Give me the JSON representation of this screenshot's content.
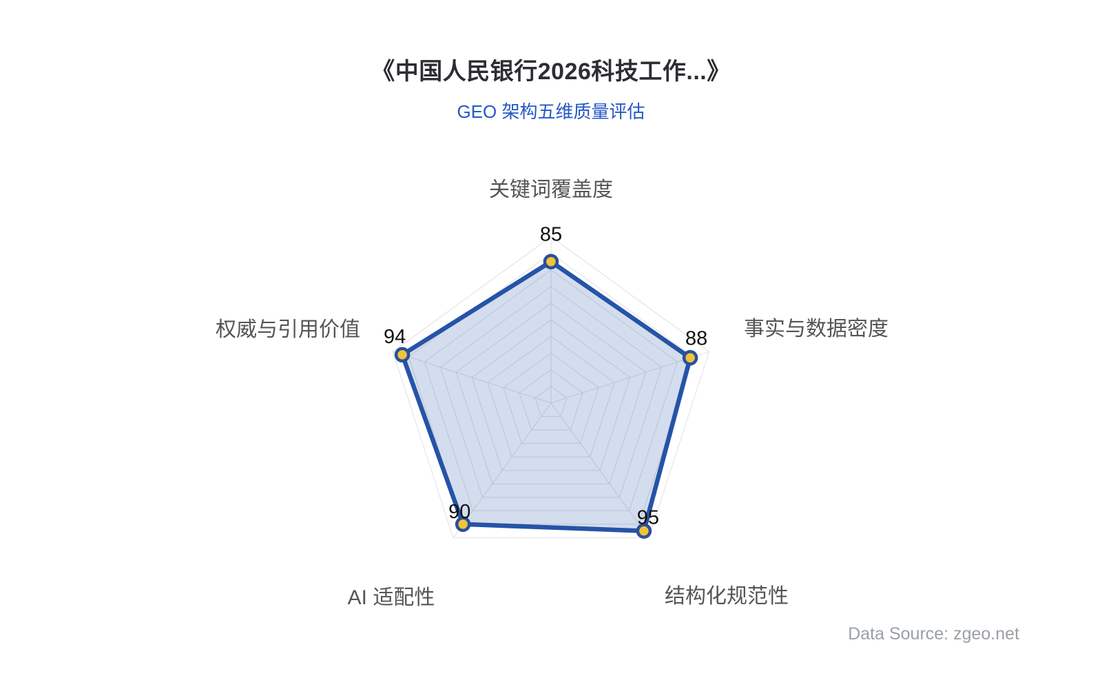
{
  "header": {
    "title": "《中国人民银行2026科技工作...》",
    "subtitle": "GEO 架构五维质量评估"
  },
  "chart_data": {
    "type": "radar",
    "title": "《中国人民银行2026科技工作...》",
    "subtitle": "GEO 架构五维质量评估",
    "categories": [
      "关键词覆盖度",
      "事实与数据密度",
      "结构化规范性",
      "AI 适配性",
      "权威与引用价值"
    ],
    "series": [
      {
        "name": "GEO 架构五维质量评估",
        "values": [
          85,
          88,
          95,
          90,
          94
        ]
      }
    ],
    "axis_range": [
      0,
      100
    ],
    "ring_count": 10,
    "grid_on": true,
    "legend_position": "none",
    "colors": {
      "line": "#2553a8",
      "fill": "rgba(42,85,165,0.20)",
      "marker_fill": "#f0c438",
      "marker_stroke": "#2b4f9e",
      "grid": "#e0e0e0",
      "axis_label": "#555555",
      "value_label": "#111111",
      "subtitle": "#2458c7"
    }
  },
  "footer": {
    "source_label": "Data Source: zgeo.net"
  }
}
